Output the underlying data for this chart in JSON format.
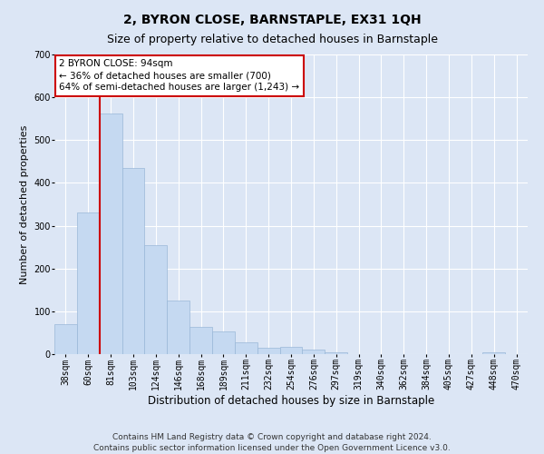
{
  "title": "2, BYRON CLOSE, BARNSTAPLE, EX31 1QH",
  "subtitle": "Size of property relative to detached houses in Barnstaple",
  "xlabel": "Distribution of detached houses by size in Barnstaple",
  "ylabel": "Number of detached properties",
  "footer_line1": "Contains HM Land Registry data © Crown copyright and database right 2024.",
  "footer_line2": "Contains public sector information licensed under the Open Government Licence v3.0.",
  "categories": [
    "38sqm",
    "60sqm",
    "81sqm",
    "103sqm",
    "124sqm",
    "146sqm",
    "168sqm",
    "189sqm",
    "211sqm",
    "232sqm",
    "254sqm",
    "276sqm",
    "297sqm",
    "319sqm",
    "340sqm",
    "362sqm",
    "384sqm",
    "405sqm",
    "427sqm",
    "448sqm",
    "470sqm"
  ],
  "values": [
    70,
    330,
    563,
    435,
    255,
    125,
    63,
    52,
    28,
    15,
    18,
    10,
    4,
    0,
    0,
    0,
    0,
    0,
    0,
    5,
    0
  ],
  "bar_color": "#c5d9f1",
  "bar_edge_color": "#9ab8d8",
  "red_line_color": "#cc0000",
  "red_line_x": 1.5,
  "annotation_line1": "2 BYRON CLOSE: 94sqm",
  "annotation_line2": "← 36% of detached houses are smaller (700)",
  "annotation_line3": "64% of semi-detached houses are larger (1,243) →",
  "annotation_box_facecolor": "#ffffff",
  "annotation_box_edgecolor": "#cc0000",
  "ylim": [
    0,
    700
  ],
  "yticks": [
    0,
    100,
    200,
    300,
    400,
    500,
    600,
    700
  ],
  "background_color": "#dce6f5",
  "plot_background_color": "#dce6f5",
  "title_fontsize": 10,
  "subtitle_fontsize": 9,
  "xlabel_fontsize": 8.5,
  "ylabel_fontsize": 8,
  "tick_fontsize": 7,
  "annotation_fontsize": 7.5,
  "footer_fontsize": 6.5
}
